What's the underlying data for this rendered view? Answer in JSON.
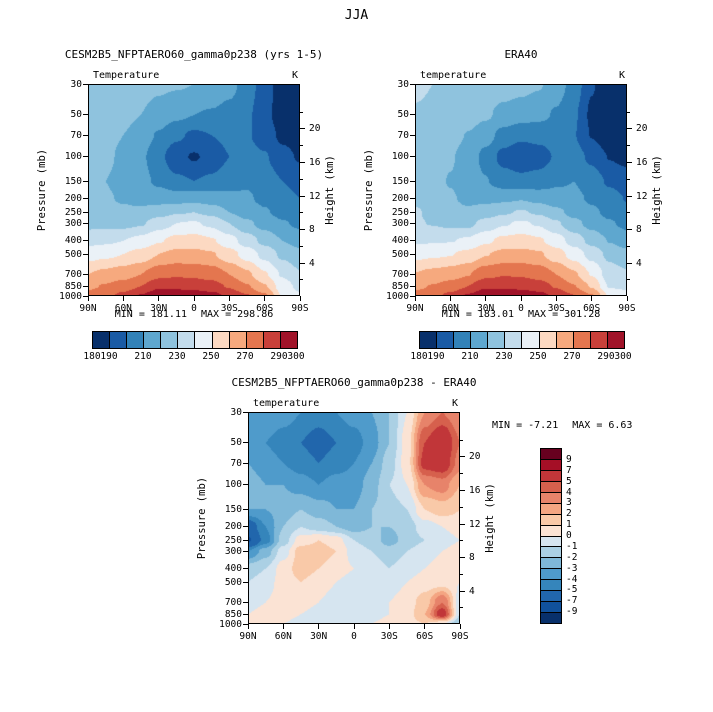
{
  "figure": {
    "title": "JJA"
  },
  "axes": {
    "pressure_label": "Pressure (mb)",
    "height_label": "Height (km)",
    "pressure_ticks": [
      30,
      50,
      70,
      100,
      150,
      200,
      250,
      300,
      400,
      500,
      700,
      850,
      1000
    ],
    "height_ticks_major": [
      20,
      16,
      12,
      8,
      4
    ],
    "height_ticks_minor": [
      22,
      18,
      14,
      10,
      6,
      2
    ],
    "lat_ticks": [
      "90N",
      "60N",
      "30N",
      "0",
      "30S",
      "60S",
      "90S"
    ]
  },
  "panels": [
    {
      "id": "model",
      "title": "CESM2B5_NFPTAERO60_gamma0p238 (yrs 1-5)",
      "field_label": "Temperature",
      "units": "K",
      "min_label": "MIN = 181.11",
      "max_label": "MAX = 298.86"
    },
    {
      "id": "era40",
      "title": "ERA40",
      "field_label": "temperature",
      "units": "K",
      "min_label": "MIN = 183.01",
      "max_label": "MAX = 301.28"
    },
    {
      "id": "diff",
      "title": "CESM2B5_NFPTAERO60_gamma0p238 - ERA40",
      "field_label": "temperature",
      "units": "K",
      "min_label": "MIN = -7.21",
      "max_label": "MAX =  6.63"
    }
  ],
  "colormaps": {
    "temp": {
      "edges": [
        180,
        190,
        200,
        210,
        220,
        230,
        240,
        250,
        260,
        270,
        280,
        290,
        300
      ],
      "colors": [
        "#053061",
        "#08306b",
        "#1a5ba5",
        "#3282b8",
        "#5ea7cf",
        "#8fc3de",
        "#c3dcec",
        "#eaf1f7",
        "#fcd9c2",
        "#f6a97e",
        "#e4764f",
        "#c8403a",
        "#a01329",
        "#67001f"
      ],
      "bar_labels": [
        "180",
        "190",
        "",
        "210",
        "",
        "230",
        "",
        "250",
        "",
        "270",
        "",
        "290",
        "300"
      ]
    },
    "diff": {
      "edges": [
        -9,
        -7,
        -5,
        -4,
        -3,
        -2,
        -1,
        0,
        1,
        2,
        3,
        4,
        5,
        7,
        9
      ],
      "colors": [
        "#08306b",
        "#10519c",
        "#2166ac",
        "#3585bb",
        "#4f9bcb",
        "#7fb8d8",
        "#abd0e4",
        "#d6e5f0",
        "#fbe3d4",
        "#f9c9a8",
        "#f4a582",
        "#e7836a",
        "#d6604d",
        "#c13639",
        "#a50f26",
        "#67001f"
      ],
      "bar_labels": [
        "9",
        "7",
        "5",
        "4",
        "3",
        "2",
        "1",
        "0",
        "-1",
        "-2",
        "-3",
        "-4",
        "-5",
        "-7",
        "-9"
      ]
    }
  },
  "chart_data": [
    {
      "type": "heatmap",
      "title": "CESM2B5_NFPTAERO60_gamma0p238 (yrs 1-5)",
      "variable": "Temperature",
      "units": "K",
      "ylabel": "Pressure (mb)",
      "ylabel_right": "Height (km)",
      "x_latitudes_deg": [
        90,
        75,
        60,
        45,
        30,
        15,
        0,
        -15,
        -30,
        -45,
        -60,
        -75,
        -90
      ],
      "y_pressure_mb": [
        30,
        50,
        70,
        100,
        150,
        200,
        250,
        300,
        400,
        500,
        700,
        850,
        1000
      ],
      "min": 181.11,
      "max": 298.86,
      "contour_levels": [
        180,
        190,
        200,
        210,
        220,
        230,
        240,
        250,
        260,
        270,
        280,
        290,
        300
      ],
      "values": [
        [
          228,
          227,
          226,
          224,
          222,
          221,
          220,
          218,
          213,
          206,
          194,
          186,
          182
        ],
        [
          226,
          225,
          223,
          220,
          216,
          212,
          210,
          209,
          207,
          202,
          193,
          185,
          182
        ],
        [
          225,
          223,
          220,
          215,
          209,
          202,
          198,
          200,
          203,
          201,
          195,
          188,
          185
        ],
        [
          224,
          222,
          218,
          212,
          203,
          193,
          189,
          193,
          200,
          204,
          201,
          193,
          189
        ],
        [
          222,
          220,
          217,
          213,
          208,
          202,
          200,
          202,
          207,
          209,
          206,
          200,
          196
        ],
        [
          222,
          221,
          219,
          217,
          216,
          216,
          217,
          215,
          212,
          211,
          208,
          204,
          200
        ],
        [
          224,
          223,
          222,
          222,
          226,
          229,
          230,
          227,
          220,
          215,
          211,
          207,
          203
        ],
        [
          227,
          227,
          227,
          229,
          235,
          240,
          241,
          238,
          230,
          222,
          216,
          211,
          208
        ],
        [
          237,
          238,
          240,
          243,
          249,
          253,
          254,
          251,
          244,
          235,
          227,
          220,
          216
        ],
        [
          246,
          248,
          250,
          254,
          260,
          263,
          263,
          261,
          254,
          246,
          237,
          228,
          223
        ],
        [
          260,
          263,
          266,
          270,
          277,
          279,
          278,
          276,
          270,
          262,
          251,
          239,
          231
        ],
        [
          268,
          271,
          275,
          280,
          288,
          287,
          286,
          284,
          279,
          271,
          261,
          245,
          237
        ],
        [
          274,
          277,
          283,
          291,
          298,
          299,
          297,
          294,
          288,
          281,
          272,
          249,
          242
        ]
      ]
    },
    {
      "type": "heatmap",
      "title": "ERA40",
      "variable": "temperature",
      "units": "K",
      "ylabel": "Pressure (mb)",
      "ylabel_right": "Height (km)",
      "x_latitudes_deg": [
        90,
        75,
        60,
        45,
        30,
        15,
        0,
        -15,
        -30,
        -45,
        -60,
        -75,
        -90
      ],
      "y_pressure_mb": [
        30,
        50,
        70,
        100,
        150,
        200,
        250,
        300,
        400,
        500,
        700,
        850,
        1000
      ],
      "min": 183.01,
      "max": 301.28,
      "contour_levels": [
        180,
        190,
        200,
        210,
        220,
        230,
        240,
        250,
        260,
        270,
        280,
        290,
        300
      ],
      "values": [
        [
          231,
          230,
          229.5,
          228,
          226.5,
          225,
          223.5,
          221,
          215,
          206,
          191,
          182,
          180.5
        ],
        [
          229.5,
          229,
          227.5,
          225,
          221.5,
          217,
          214.5,
          212.5,
          209,
          201.5,
          188,
          180.5,
          180.5
        ],
        [
          228,
          226.5,
          224,
          219.5,
          214,
          206.5,
          202,
          203,
          204.5,
          200.5,
          189.5,
          182,
          181.5
        ],
        [
          226.5,
          225,
          221,
          215.5,
          207,
          196.5,
          192.5,
          195.5,
          201,
          204,
          198,
          189.5,
          187
        ],
        [
          225,
          223,
          219.5,
          215,
          210.5,
          205,
          203,
          204,
          208.5,
          210,
          205,
          198.5,
          195
        ],
        [
          228,
          225,
          221,
          218,
          217.5,
          218,
          219.5,
          217,
          214,
          212.5,
          208.5,
          204,
          199.5
        ],
        [
          231.2,
          227.5,
          223.5,
          221.5,
          225,
          228.5,
          231,
          228.5,
          222.5,
          216.5,
          212,
          207.5,
          203
        ],
        [
          231,
          229.5,
          227.5,
          227.5,
          233.5,
          239,
          241.5,
          239,
          231.5,
          223,
          216.5,
          211,
          207.5
        ],
        [
          238.5,
          239,
          239.5,
          241.5,
          248,
          252.5,
          254,
          251.5,
          245,
          235.5,
          227,
          219.5,
          215
        ],
        [
          247,
          248.5,
          249.5,
          253,
          259.5,
          263,
          263.5,
          261.5,
          254.5,
          246,
          236.5,
          227.5,
          223
        ],
        [
          260.5,
          263,
          265.5,
          269.5,
          277,
          279.5,
          279,
          276.5,
          270,
          261.5,
          249.5,
          235,
          231.5
        ],
        [
          268,
          270.5,
          274.5,
          280,
          288.5,
          288,
          287,
          284.5,
          279,
          270.5,
          259,
          239,
          238
        ],
        [
          273.5,
          276.5,
          283,
          291.5,
          299,
          300,
          297.5,
          294,
          287.5,
          280.5,
          271,
          249,
          244
        ]
      ]
    },
    {
      "type": "heatmap",
      "title": "CESM2B5_NFPTAERO60_gamma0p238 - ERA40",
      "variable": "temperature",
      "units": "K",
      "ylabel": "Pressure (mb)",
      "ylabel_right": "Height (km)",
      "x_latitudes_deg": [
        90,
        75,
        60,
        45,
        30,
        15,
        0,
        -15,
        -30,
        -45,
        -60,
        -75,
        -90
      ],
      "y_pressure_mb": [
        30,
        50,
        70,
        100,
        150,
        200,
        250,
        300,
        400,
        500,
        700,
        850,
        1000
      ],
      "min": -7.21,
      "max": 6.63,
      "contour_levels": [
        -9,
        -7,
        -5,
        -4,
        -3,
        -2,
        -1,
        0,
        1,
        2,
        3,
        4,
        5,
        7,
        9
      ],
      "values": [
        [
          -3,
          -3,
          -3.5,
          -4,
          -4.5,
          -4,
          -3.5,
          -3,
          -2,
          0,
          3,
          4,
          3
        ],
        [
          -3.5,
          -4,
          -4.5,
          -5,
          -5.5,
          -5,
          -4.5,
          -3.5,
          -2,
          0.5,
          5,
          6.5,
          4
        ],
        [
          -3,
          -3.5,
          -4,
          -4.5,
          -5,
          -4.5,
          -4,
          -3,
          -1.5,
          0.5,
          5.5,
          6,
          3.5
        ],
        [
          -2.5,
          -3,
          -3,
          -3.5,
          -4,
          -3.5,
          -3.5,
          -2.5,
          -1,
          0,
          3,
          3.5,
          2
        ],
        [
          -3,
          -3,
          -2.5,
          -2,
          -2.5,
          -3,
          -3,
          -2,
          -1.5,
          -1,
          1,
          1.5,
          1
        ],
        [
          -6,
          -4,
          -2,
          -1,
          -1.5,
          -2,
          -2.5,
          -2,
          -2,
          -1.5,
          -0.5,
          0,
          0.5
        ],
        [
          -7.2,
          -4.5,
          -1.5,
          0.5,
          1,
          0.5,
          -1,
          -1.5,
          -2.5,
          -1.5,
          -1,
          -0.5,
          0
        ],
        [
          -4,
          -2.5,
          -0.5,
          1.5,
          1.5,
          1,
          -0.5,
          -1,
          -1.5,
          -1,
          -0.5,
          0,
          0.5
        ],
        [
          -1.5,
          -1,
          0.5,
          1.5,
          1,
          0.5,
          0,
          -0.5,
          -1,
          -0.5,
          0,
          0.5,
          1
        ],
        [
          -1,
          -0.5,
          0.5,
          1,
          0.5,
          0,
          -0.5,
          -0.5,
          -0.5,
          0,
          0.5,
          0.5,
          0
        ],
        [
          -0.5,
          0,
          0.5,
          0.5,
          0,
          -0.5,
          -1,
          -0.5,
          0,
          0.5,
          1.5,
          4,
          -0.5
        ],
        [
          0,
          0.5,
          0.5,
          0,
          -0.5,
          -1,
          -1,
          -0.5,
          0,
          0.5,
          2,
          6,
          -1
        ],
        [
          0.5,
          0.5,
          0,
          -0.5,
          -1,
          -1,
          -0.5,
          0,
          0.5,
          0.5,
          1,
          0,
          -2
        ]
      ]
    }
  ]
}
